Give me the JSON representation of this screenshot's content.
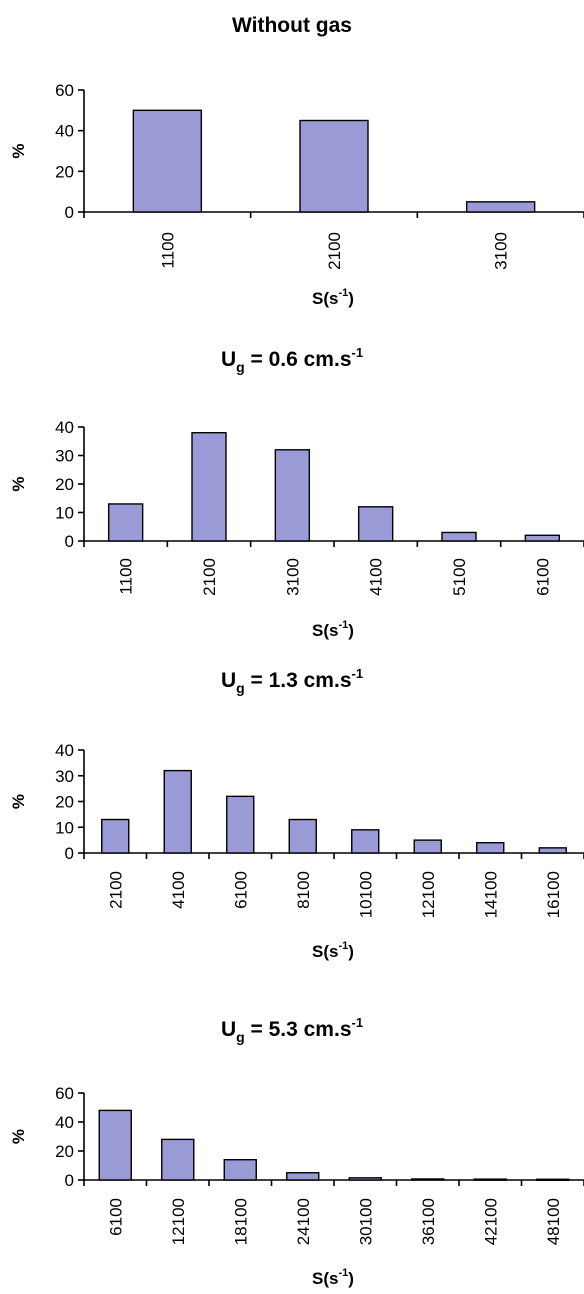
{
  "colors": {
    "bar_fill": "#9a9ad6",
    "bar_stroke": "#000000",
    "axis": "#000000",
    "text": "#000000"
  },
  "chart_data": [
    {
      "type": "bar",
      "title": {
        "main": "Without gas",
        "sub": "",
        "post": ""
      },
      "categories": [
        "1100",
        "2100",
        "3100"
      ],
      "values": [
        50,
        45,
        5
      ],
      "ylabel": "%",
      "xlabel": {
        "main": "S(s",
        "sup": "-1",
        "post": ")"
      },
      "ylim": [
        0,
        60
      ],
      "yticks": [
        0,
        20,
        40,
        60
      ],
      "grid": false
    },
    {
      "type": "bar",
      "title": {
        "main": "U",
        "sub": "g",
        "post": " = 0.6 cm.s",
        "sup": "-1"
      },
      "categories": [
        "1100",
        "2100",
        "3100",
        "4100",
        "5100",
        "6100"
      ],
      "values": [
        13,
        38,
        32,
        12,
        3,
        2
      ],
      "ylabel": "%",
      "xlabel": {
        "main": "S(s",
        "sup": "-1",
        "post": ")"
      },
      "ylim": [
        0,
        40
      ],
      "yticks": [
        0,
        10,
        20,
        30,
        40
      ],
      "grid": false
    },
    {
      "type": "bar",
      "title": {
        "main": "U",
        "sub": "g",
        "post": " = 1.3 cm.s",
        "sup": "-1"
      },
      "categories": [
        "2100",
        "4100",
        "6100",
        "8100",
        "10100",
        "12100",
        "14100",
        "16100"
      ],
      "values": [
        13,
        32,
        22,
        13,
        9,
        5,
        4,
        2
      ],
      "ylabel": "%",
      "xlabel": {
        "main": "S(s",
        "sup": "-1",
        "post": ")"
      },
      "ylim": [
        0,
        40
      ],
      "yticks": [
        0,
        10,
        20,
        30,
        40
      ],
      "grid": false
    },
    {
      "type": "bar",
      "title": {
        "main": "U",
        "sub": "g",
        "post": " = 5.3 cm.s",
        "sup": "-1"
      },
      "categories": [
        "6100",
        "12100",
        "18100",
        "24100",
        "30100",
        "36100",
        "42100",
        "48100"
      ],
      "values": [
        48,
        28,
        14,
        5,
        1.5,
        0.7,
        0.6,
        0.5
      ],
      "ylabel": "%",
      "xlabel": {
        "main": "S(s",
        "sup": "-1",
        "post": ")"
      },
      "ylim": [
        0,
        60
      ],
      "yticks": [
        0,
        20,
        40,
        60
      ],
      "grid": false
    }
  ]
}
